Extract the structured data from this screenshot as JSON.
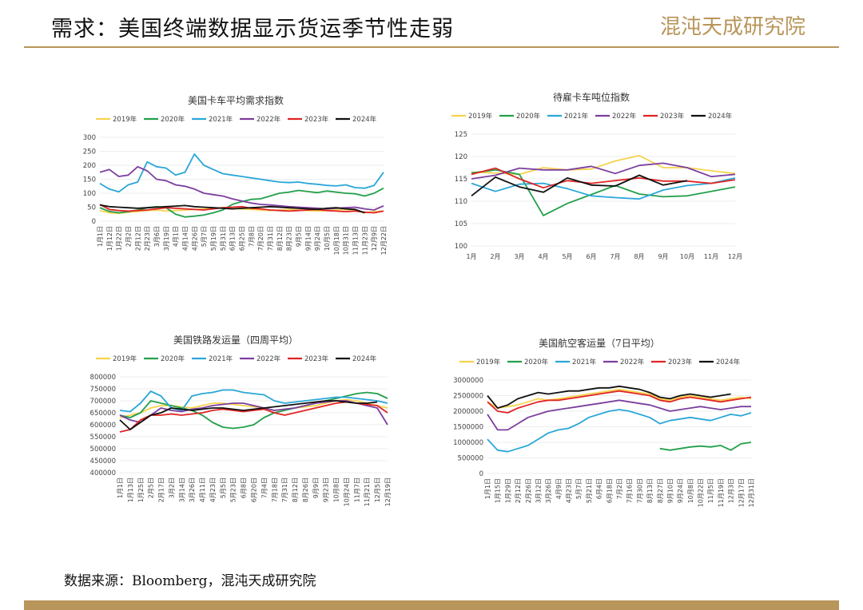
{
  "header": {
    "title": "需求：美国终端数据显示货运季节性走弱",
    "logo_text": "混沌天成研究院"
  },
  "footer": {
    "source": "数据来源：Bloomberg，混沌天成研究院"
  },
  "colors": {
    "y2019": "#f5d34f",
    "y2020": "#23a04b",
    "y2021": "#2aa7d8",
    "y2022": "#7c3f9e",
    "y2023": "#e02424",
    "y2024": "#111111",
    "accent": "#b8955a"
  },
  "chart_data": [
    {
      "type": "line",
      "title": "美国卡车平均需求指数",
      "legend": [
        "2019年",
        "2020年",
        "2021年",
        "2022年",
        "2023年",
        "2024年"
      ],
      "ylim": [
        0,
        300
      ],
      "yticks": [
        "300",
        "250",
        "200",
        "150",
        "100",
        "50",
        "0"
      ],
      "xticks": [
        "1月1日",
        "1月12日",
        "1月22日",
        "2月2日",
        "2月12日",
        "2月23日",
        "3月6日",
        "3月19日",
        "4月1日",
        "4月14日",
        "4月26日",
        "5月7日",
        "5月19日",
        "5月31日",
        "6月13日",
        "6月25日",
        "7月8日",
        "7月20日",
        "7月31日",
        "8月12日",
        "8月23日",
        "9月5日",
        "9月14日",
        "9月24日",
        "10月5日",
        "10月18日",
        "10月31日",
        "11月13日",
        "11月23日",
        "12月9日",
        "12月22日"
      ],
      "series": [
        {
          "name": "2019年",
          "values": [
            38,
            30,
            28,
            32,
            35,
            38,
            40,
            36,
            38,
            40,
            42,
            44,
            46,
            48,
            45,
            44,
            42,
            40,
            38,
            40,
            42,
            40,
            38,
            36,
            38,
            40,
            42,
            38,
            30,
            34,
            36
          ]
        },
        {
          "name": "2020年",
          "values": [
            48,
            35,
            30,
            34,
            40,
            48,
            52,
            48,
            25,
            15,
            18,
            22,
            30,
            40,
            60,
            70,
            78,
            80,
            90,
            100,
            104,
            110,
            106,
            102,
            108,
            104,
            100,
            98,
            90,
            100,
            118
          ]
        },
        {
          "name": "2021年",
          "values": [
            135,
            115,
            105,
            130,
            140,
            212,
            195,
            190,
            165,
            175,
            240,
            200,
            185,
            170,
            165,
            160,
            155,
            150,
            145,
            140,
            138,
            140,
            135,
            132,
            128,
            126,
            130,
            120,
            118,
            128,
            175
          ]
        },
        {
          "name": "2022年",
          "values": [
            175,
            185,
            160,
            165,
            195,
            180,
            150,
            145,
            130,
            125,
            115,
            100,
            95,
            90,
            80,
            72,
            65,
            60,
            58,
            55,
            52,
            50,
            48,
            46,
            44,
            46,
            48,
            50,
            44,
            40,
            55
          ]
        },
        {
          "name": "2023年",
          "values": [
            60,
            42,
            38,
            36,
            38,
            40,
            44,
            48,
            46,
            44,
            42,
            40,
            44,
            48,
            50,
            52,
            46,
            44,
            40,
            38,
            36,
            38,
            40,
            42,
            38,
            36,
            34,
            36,
            32,
            30,
            36
          ]
        },
        {
          "name": "2024年",
          "values": [
            58,
            52,
            50,
            48,
            46,
            48,
            50,
            52,
            54,
            56,
            52,
            50,
            48,
            46,
            44,
            46,
            48,
            50,
            52,
            50,
            48,
            46,
            44,
            42,
            46,
            48,
            44,
            42,
            30
          ]
        }
      ]
    },
    {
      "type": "line",
      "title": "待雇卡车吨位指数",
      "legend": [
        "2019年",
        "2020年",
        "2021年",
        "2022年",
        "2023年",
        "2024年"
      ],
      "ylim": [
        100,
        125
      ],
      "yticks": [
        "125",
        "120",
        "115",
        "110",
        "105",
        "100"
      ],
      "xticks": [
        "1月",
        "2月",
        "3月",
        "4月",
        "5月",
        "6月",
        "7月",
        "8月",
        "9月",
        "10月",
        "11月",
        "12月"
      ],
      "series": [
        {
          "name": "2019年",
          "values": [
            116.5,
            116.3,
            116.0,
            117.5,
            117.0,
            117.2,
            119.0,
            120.2,
            117.5,
            117.5,
            116.8,
            116.2
          ]
        },
        {
          "name": "2020年",
          "values": [
            116.3,
            117.0,
            116.0,
            106.8,
            109.5,
            111.5,
            113.5,
            111.6,
            111.0,
            111.2,
            112.2,
            113.2
          ]
        },
        {
          "name": "2021年",
          "values": [
            114.0,
            112.2,
            113.8,
            114.0,
            112.8,
            111.2,
            110.8,
            110.5,
            112.5,
            113.5,
            114.0,
            115.2
          ]
        },
        {
          "name": "2022年",
          "values": [
            115.0,
            115.8,
            117.4,
            117.0,
            117.0,
            117.8,
            116.2,
            118.0,
            118.5,
            117.5,
            115.5,
            116.0
          ]
        },
        {
          "name": "2023年",
          "values": [
            116.0,
            117.4,
            115.0,
            113.0,
            114.6,
            114.0,
            114.6,
            115.2,
            114.5,
            114.5,
            114.0,
            114.8
          ]
        },
        {
          "name": "2024年",
          "values": [
            111.2,
            115.4,
            113.2,
            112.0,
            115.2,
            113.6,
            113.4,
            115.8,
            113.6,
            114.6
          ]
        }
      ]
    },
    {
      "type": "line",
      "title": "美国铁路发运量（四周平均）",
      "legend": [
        "2019年",
        "2020年",
        "2021年",
        "2022年",
        "2023年",
        "2024年"
      ],
      "ylim": [
        400000,
        800000
      ],
      "yticks": [
        "800000",
        "750000",
        "700000",
        "650000",
        "600000",
        "550000",
        "500000",
        "450000",
        "400000"
      ],
      "xticks": [
        "1月1日",
        "1月13日",
        "1月25日",
        "2月5日",
        "2月17日",
        "3月2日",
        "3月14日",
        "3月26日",
        "4月11日",
        "4月23日",
        "5月5日",
        "5月23日",
        "6月8日",
        "6月20日",
        "7月4日",
        "7月18日",
        "7月31日",
        "8月12日",
        "8月26日",
        "9月9日",
        "9月23日",
        "10月8日",
        "10月24日",
        "11月7日",
        "11月21日",
        "12月5日",
        "12月19日"
      ],
      "series": [
        {
          "name": "2019年",
          "values": [
            630000,
            640000,
            650000,
            670000,
            680000,
            680000,
            675000,
            670000,
            680000,
            690000,
            690000,
            685000,
            680000,
            675000,
            670000,
            660000,
            665000,
            670000,
            675000,
            680000,
            690000,
            700000,
            705000,
            700000,
            690000,
            680000,
            670000
          ]
        },
        {
          "name": "2020年",
          "values": [
            640000,
            630000,
            650000,
            700000,
            690000,
            680000,
            670000,
            660000,
            640000,
            610000,
            590000,
            585000,
            590000,
            600000,
            630000,
            650000,
            660000,
            670000,
            680000,
            690000,
            700000,
            710000,
            720000,
            730000,
            735000,
            730000,
            710000
          ]
        },
        {
          "name": "2021年",
          "values": [
            660000,
            655000,
            690000,
            740000,
            720000,
            670000,
            660000,
            720000,
            730000,
            735000,
            745000,
            745000,
            735000,
            730000,
            725000,
            700000,
            690000,
            695000,
            700000,
            705000,
            710000,
            715000,
            715000,
            710000,
            705000,
            700000,
            690000
          ]
        },
        {
          "name": "2022年",
          "values": [
            640000,
            620000,
            610000,
            640000,
            670000,
            660000,
            655000,
            665000,
            670000,
            680000,
            685000,
            690000,
            690000,
            680000,
            670000,
            660000,
            665000,
            670000,
            680000,
            690000,
            695000,
            700000,
            700000,
            690000,
            680000,
            670000,
            600000
          ]
        },
        {
          "name": "2023年",
          "values": [
            570000,
            580000,
            620000,
            640000,
            640000,
            645000,
            640000,
            645000,
            650000,
            660000,
            665000,
            660000,
            655000,
            660000,
            665000,
            650000,
            640000,
            650000,
            660000,
            670000,
            680000,
            690000,
            695000,
            690000,
            685000,
            680000,
            650000
          ]
        },
        {
          "name": "2024年",
          "values": [
            620000,
            580000,
            610000,
            640000,
            650000,
            670000,
            665000,
            660000,
            665000,
            670000,
            670000,
            665000,
            660000,
            665000,
            670000,
            675000,
            680000,
            685000,
            690000,
            695000,
            700000,
            700000,
            695000,
            690000,
            690000,
            695000
          ]
        }
      ]
    },
    {
      "type": "line",
      "title": "美国航空客运量（7日平均）",
      "legend": [
        "2019年",
        "2020年",
        "2021年",
        "2022年",
        "2023年",
        "2024年"
      ],
      "ylim": [
        0,
        3000000
      ],
      "yticks": [
        "3000000",
        "2500000",
        "2000000",
        "1500000",
        "1000000",
        "500000",
        "0"
      ],
      "xticks": [
        "1月1日",
        "1月15日",
        "1月29日",
        "2月12日",
        "2月26日",
        "3月12日",
        "3月26日",
        "4月9日",
        "4月23日",
        "5月7日",
        "5月21日",
        "6月4日",
        "6月18日",
        "7月2日",
        "7月16日",
        "7月30日",
        "8月13日",
        "8月27日",
        "9月10日",
        "9月24日",
        "10月8日",
        "10月22日",
        "11月5日",
        "11月19日",
        "12月3日",
        "12月17日",
        "12月31日"
      ],
      "series": [
        {
          "name": "2019年",
          "values": [
            2300000,
            2100000,
            2150000,
            2200000,
            2300000,
            2400000,
            2350000,
            2400000,
            2450000,
            2500000,
            2550000,
            2600000,
            2650000,
            2700000,
            2650000,
            2600000,
            2550000,
            2400000,
            2350000,
            2450000,
            2500000,
            2450000,
            2400000,
            2350000,
            2400000,
            2450000,
            2400000
          ]
        },
        {
          "name": "2020年",
          "values": [
            null,
            null,
            null,
            null,
            null,
            null,
            null,
            null,
            null,
            null,
            null,
            null,
            null,
            null,
            null,
            null,
            null,
            800000,
            750000,
            800000,
            850000,
            880000,
            850000,
            900000,
            750000,
            950000,
            1000000
          ]
        },
        {
          "name": "2021年",
          "values": [
            1100000,
            750000,
            700000,
            800000,
            900000,
            1100000,
            1300000,
            1400000,
            1450000,
            1600000,
            1800000,
            1900000,
            2000000,
            2050000,
            2000000,
            1900000,
            1800000,
            1600000,
            1700000,
            1750000,
            1800000,
            1750000,
            1700000,
            1800000,
            1900000,
            1850000,
            1950000
          ]
        },
        {
          "name": "2022年",
          "values": [
            1900000,
            1400000,
            1400000,
            1600000,
            1800000,
            1900000,
            2000000,
            2050000,
            2100000,
            2150000,
            2200000,
            2250000,
            2300000,
            2350000,
            2300000,
            2250000,
            2200000,
            2100000,
            2000000,
            2050000,
            2100000,
            2150000,
            2100000,
            2050000,
            2100000,
            2150000,
            2150000
          ]
        },
        {
          "name": "2023年",
          "values": [
            2300000,
            2000000,
            1950000,
            2100000,
            2200000,
            2300000,
            2350000,
            2350000,
            2400000,
            2450000,
            2500000,
            2550000,
            2600000,
            2650000,
            2600000,
            2550000,
            2500000,
            2350000,
            2300000,
            2400000,
            2450000,
            2400000,
            2350000,
            2300000,
            2350000,
            2400000,
            2450000
          ]
        },
        {
          "name": "2024年",
          "values": [
            2500000,
            2100000,
            2200000,
            2400000,
            2500000,
            2600000,
            2550000,
            2600000,
            2650000,
            2650000,
            2700000,
            2750000,
            2750000,
            2800000,
            2750000,
            2700000,
            2600000,
            2450000,
            2400000,
            2500000,
            2550000,
            2500000,
            2450000,
            2500000,
            2550000
          ]
        }
      ]
    }
  ]
}
